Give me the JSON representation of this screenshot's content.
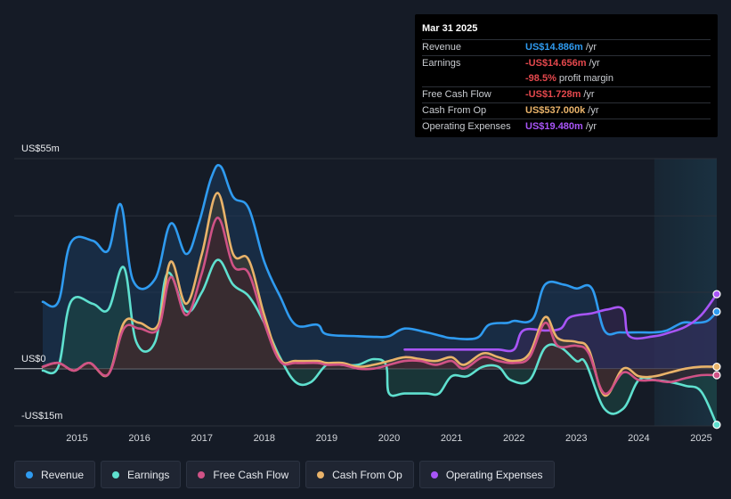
{
  "tooltip": {
    "date": "Mar 31 2025",
    "rows": [
      {
        "label": "Revenue",
        "value": "US$14.886m",
        "unit": "/yr",
        "color": "#2f9bf0"
      },
      {
        "label": "Earnings",
        "value": "-US$14.656m",
        "unit": "/yr",
        "color": "#e5484d"
      },
      {
        "label": "",
        "value": "-98.5%",
        "unit": "profit margin",
        "color": "#e5484d"
      },
      {
        "label": "Free Cash Flow",
        "value": "-US$1.728m",
        "unit": "/yr",
        "color": "#e5484d"
      },
      {
        "label": "Cash From Op",
        "value": "US$537.000k",
        "unit": "/yr",
        "color": "#e9b36a"
      },
      {
        "label": "Operating Expenses",
        "value": "US$19.480m",
        "unit": "/yr",
        "color": "#a855f7"
      }
    ]
  },
  "chart_data": {
    "type": "area",
    "y_top_label": "US$55m",
    "y_zero_label": "US$0",
    "y_bottom_label": "-US$15m",
    "ylim": [
      -15,
      55
    ],
    "xlim": [
      2014.45,
      2025.25
    ],
    "x_ticks": [
      "2015",
      "2016",
      "2017",
      "2018",
      "2019",
      "2020",
      "2021",
      "2022",
      "2023",
      "2024",
      "2025"
    ],
    "forecast_start": 2024.25,
    "series": [
      {
        "name": "Revenue",
        "color": "#2f9bf0",
        "fill": "#1b3a5c",
        "points": [
          [
            2014.45,
            17.5
          ],
          [
            2014.7,
            17.5
          ],
          [
            2014.9,
            33
          ],
          [
            2015.25,
            33.5
          ],
          [
            2015.5,
            31
          ],
          [
            2015.7,
            43
          ],
          [
            2015.9,
            23
          ],
          [
            2016.25,
            23.5
          ],
          [
            2016.5,
            38
          ],
          [
            2016.75,
            30
          ],
          [
            2016.95,
            38
          ],
          [
            2017.15,
            50
          ],
          [
            2017.3,
            53
          ],
          [
            2017.5,
            45
          ],
          [
            2017.75,
            42
          ],
          [
            2018.0,
            28
          ],
          [
            2018.25,
            19
          ],
          [
            2018.5,
            11.5
          ],
          [
            2018.85,
            11.5
          ],
          [
            2019.0,
            9
          ],
          [
            2019.5,
            8.5
          ],
          [
            2019.8,
            8.3
          ],
          [
            2020.0,
            8.5
          ],
          [
            2020.25,
            10.5
          ],
          [
            2020.6,
            9.5
          ],
          [
            2020.85,
            8.5
          ],
          [
            2021.0,
            8
          ],
          [
            2021.4,
            8
          ],
          [
            2021.6,
            11.5
          ],
          [
            2021.9,
            12
          ],
          [
            2022.0,
            12.5
          ],
          [
            2022.3,
            13
          ],
          [
            2022.5,
            22
          ],
          [
            2022.8,
            22
          ],
          [
            2023.0,
            21
          ],
          [
            2023.25,
            21
          ],
          [
            2023.45,
            10
          ],
          [
            2023.7,
            9.5
          ],
          [
            2024.0,
            9.5
          ],
          [
            2024.25,
            9.5
          ],
          [
            2024.45,
            10
          ],
          [
            2024.7,
            12
          ],
          [
            2024.9,
            12
          ],
          [
            2025.1,
            12.5
          ],
          [
            2025.25,
            14.9
          ]
        ]
      },
      {
        "name": "Earnings",
        "color": "#5fe0cf",
        "fill": "#1d4b45",
        "points": [
          [
            2014.45,
            -0.5
          ],
          [
            2014.7,
            0.5
          ],
          [
            2014.9,
            17.5
          ],
          [
            2015.25,
            17
          ],
          [
            2015.5,
            15.5
          ],
          [
            2015.75,
            26.5
          ],
          [
            2015.95,
            7
          ],
          [
            2016.25,
            7
          ],
          [
            2016.45,
            25
          ],
          [
            2016.75,
            15
          ],
          [
            2017.0,
            20
          ],
          [
            2017.25,
            28.5
          ],
          [
            2017.5,
            22
          ],
          [
            2017.75,
            19
          ],
          [
            2018.0,
            12
          ],
          [
            2018.25,
            3
          ],
          [
            2018.5,
            -3.5
          ],
          [
            2018.75,
            -3.5
          ],
          [
            2019.0,
            1
          ],
          [
            2019.25,
            1
          ],
          [
            2019.5,
            1
          ],
          [
            2019.75,
            2.5
          ],
          [
            2019.95,
            1
          ],
          [
            2020.0,
            -6.5
          ],
          [
            2020.25,
            -6.5
          ],
          [
            2020.6,
            -6.5
          ],
          [
            2020.8,
            -6.5
          ],
          [
            2021.0,
            -2
          ],
          [
            2021.25,
            -2
          ],
          [
            2021.5,
            0.5
          ],
          [
            2021.75,
            0.5
          ],
          [
            2021.95,
            -3
          ],
          [
            2022.25,
            -3
          ],
          [
            2022.5,
            5.5
          ],
          [
            2022.75,
            5.5
          ],
          [
            2023.0,
            2
          ],
          [
            2023.15,
            1.5
          ],
          [
            2023.45,
            -10.5
          ],
          [
            2023.75,
            -10.5
          ],
          [
            2024.0,
            -3
          ],
          [
            2024.25,
            -3
          ],
          [
            2024.5,
            -3.5
          ],
          [
            2024.75,
            -4.5
          ],
          [
            2025.0,
            -6
          ],
          [
            2025.25,
            -14.7
          ]
        ]
      },
      {
        "name": "Free Cash Flow",
        "color": "#d05286",
        "fill": "#3d1c2a",
        "points": [
          [
            2014.45,
            0.5
          ],
          [
            2014.7,
            1.5
          ],
          [
            2014.95,
            -0.5
          ],
          [
            2015.2,
            1.5
          ],
          [
            2015.5,
            -1.5
          ],
          [
            2015.75,
            10.5
          ],
          [
            2016.0,
            10.5
          ],
          [
            2016.3,
            10.5
          ],
          [
            2016.5,
            24
          ],
          [
            2016.75,
            14
          ],
          [
            2017.0,
            25
          ],
          [
            2017.25,
            39.5
          ],
          [
            2017.5,
            27
          ],
          [
            2017.75,
            25
          ],
          [
            2018.0,
            12
          ],
          [
            2018.25,
            2
          ],
          [
            2018.5,
            1.5
          ],
          [
            2018.85,
            1.5
          ],
          [
            2019.0,
            1
          ],
          [
            2019.25,
            1
          ],
          [
            2019.5,
            0
          ],
          [
            2019.75,
            0
          ],
          [
            2020.0,
            1
          ],
          [
            2020.25,
            2
          ],
          [
            2020.5,
            2
          ],
          [
            2020.75,
            1
          ],
          [
            2021.0,
            2
          ],
          [
            2021.2,
            0
          ],
          [
            2021.5,
            3
          ],
          [
            2021.75,
            2
          ],
          [
            2022.0,
            1.5
          ],
          [
            2022.25,
            3
          ],
          [
            2022.5,
            12
          ],
          [
            2022.7,
            6
          ],
          [
            2023.0,
            6
          ],
          [
            2023.2,
            4
          ],
          [
            2023.45,
            -6.5
          ],
          [
            2023.75,
            -1
          ],
          [
            2024.0,
            -3
          ],
          [
            2024.25,
            -3
          ],
          [
            2024.5,
            -3.5
          ],
          [
            2024.75,
            -2.5
          ],
          [
            2025.0,
            -1.7
          ],
          [
            2025.25,
            -1.7
          ]
        ]
      },
      {
        "name": "Cash From Op",
        "color": "#e9b36a",
        "fill": "#4a4432",
        "points": [
          [
            2014.45,
            0.5
          ],
          [
            2014.7,
            1.5
          ],
          [
            2014.95,
            -0.5
          ],
          [
            2015.2,
            1.5
          ],
          [
            2015.5,
            -1.5
          ],
          [
            2015.75,
            12
          ],
          [
            2016.0,
            12
          ],
          [
            2016.3,
            11.5
          ],
          [
            2016.5,
            28
          ],
          [
            2016.75,
            17
          ],
          [
            2017.0,
            30
          ],
          [
            2017.25,
            46
          ],
          [
            2017.5,
            30
          ],
          [
            2017.75,
            28.5
          ],
          [
            2018.0,
            14
          ],
          [
            2018.25,
            2.5
          ],
          [
            2018.5,
            2
          ],
          [
            2018.85,
            2
          ],
          [
            2019.0,
            1.5
          ],
          [
            2019.25,
            1.5
          ],
          [
            2019.5,
            0.5
          ],
          [
            2019.75,
            1
          ],
          [
            2020.0,
            2
          ],
          [
            2020.25,
            3
          ],
          [
            2020.5,
            2.5
          ],
          [
            2020.75,
            2
          ],
          [
            2021.0,
            3
          ],
          [
            2021.2,
            1
          ],
          [
            2021.5,
            4
          ],
          [
            2021.75,
            3
          ],
          [
            2022.0,
            2
          ],
          [
            2022.25,
            4
          ],
          [
            2022.5,
            13.5
          ],
          [
            2022.7,
            8
          ],
          [
            2023.0,
            7
          ],
          [
            2023.2,
            5
          ],
          [
            2023.45,
            -7
          ],
          [
            2023.75,
            0
          ],
          [
            2024.0,
            -2
          ],
          [
            2024.25,
            -2
          ],
          [
            2024.5,
            -1
          ],
          [
            2024.75,
            0
          ],
          [
            2025.0,
            0.5
          ],
          [
            2025.25,
            0.5
          ]
        ]
      },
      {
        "name": "Operating Expenses",
        "color": "#a855f7",
        "fill": "#3a2a5a",
        "points": [
          [
            2020.25,
            5
          ],
          [
            2020.75,
            5
          ],
          [
            2021.0,
            5
          ],
          [
            2021.5,
            5
          ],
          [
            2021.75,
            5
          ],
          [
            2022.0,
            5
          ],
          [
            2022.15,
            10
          ],
          [
            2022.5,
            10
          ],
          [
            2022.75,
            10.5
          ],
          [
            2022.9,
            13.5
          ],
          [
            2023.25,
            14.5
          ],
          [
            2023.5,
            15.5
          ],
          [
            2023.75,
            15.5
          ],
          [
            2023.85,
            8.5
          ],
          [
            2024.25,
            8.5
          ],
          [
            2024.5,
            9.5
          ],
          [
            2024.75,
            11
          ],
          [
            2025.0,
            14
          ],
          [
            2025.25,
            19.5
          ]
        ]
      }
    ]
  },
  "legend": [
    {
      "label": "Revenue",
      "color": "#2f9bf0"
    },
    {
      "label": "Earnings",
      "color": "#5fe0cf"
    },
    {
      "label": "Free Cash Flow",
      "color": "#d05286"
    },
    {
      "label": "Cash From Op",
      "color": "#e9b36a"
    },
    {
      "label": "Operating Expenses",
      "color": "#a855f7"
    }
  ]
}
